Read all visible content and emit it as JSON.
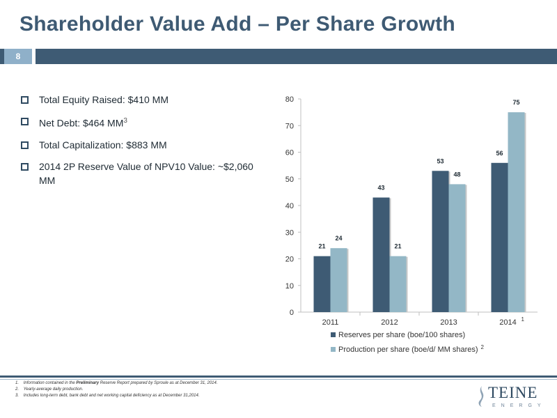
{
  "slide": {
    "title": "Shareholder Value Add – Per Share Growth",
    "page_number": "8"
  },
  "bullets": [
    {
      "text": "Total Equity Raised: $410 MM",
      "sup": ""
    },
    {
      "text": "Net Debt: $464 MM",
      "sup": "3"
    },
    {
      "text": "Total Capitalization: $883 MM",
      "sup": ""
    },
    {
      "text": "2014 2P Reserve Value of NPV10 Value: ~$2,060 MM",
      "sup": ""
    }
  ],
  "chart_data": {
    "type": "bar",
    "categories": [
      "2011",
      "2012",
      "2013",
      "2014"
    ],
    "category_superscripts": [
      "",
      "",
      "",
      "1"
    ],
    "series": [
      {
        "name": "Reserves per share   (boe/100 shares)",
        "name_sup": "",
        "values": [
          21,
          43,
          53,
          56
        ],
        "color": "#3e5b74"
      },
      {
        "name": "Production per share (boe/d/ MM shares)",
        "name_sup": "2",
        "values": [
          24,
          21,
          48,
          75
        ],
        "color": "#93b7c6"
      }
    ],
    "ylim": [
      0,
      80
    ],
    "yticks": [
      0,
      10,
      20,
      30,
      40,
      50,
      60,
      70,
      80
    ],
    "grid": false,
    "legend": "bottom"
  },
  "footnotes": [
    {
      "num": "1.",
      "pre": "Information contained in the ",
      "bold": "Preliminary",
      "post": " Reserve Report prepared by Sproule as at December 31, 2014."
    },
    {
      "num": "2.",
      "pre": "Yearly-average daily production.",
      "bold": "",
      "post": ""
    },
    {
      "num": "3.",
      "pre": "Includes long-term debt, bank debt and net working capital deficiency as at December 31,2014.",
      "bold": "",
      "post": ""
    }
  ],
  "logo": {
    "main": "TEINE",
    "sub": "ENERGY"
  },
  "colors": {
    "accent": "#3e5b74",
    "accent_light": "#93b7c6",
    "title": "#3e5a73"
  }
}
